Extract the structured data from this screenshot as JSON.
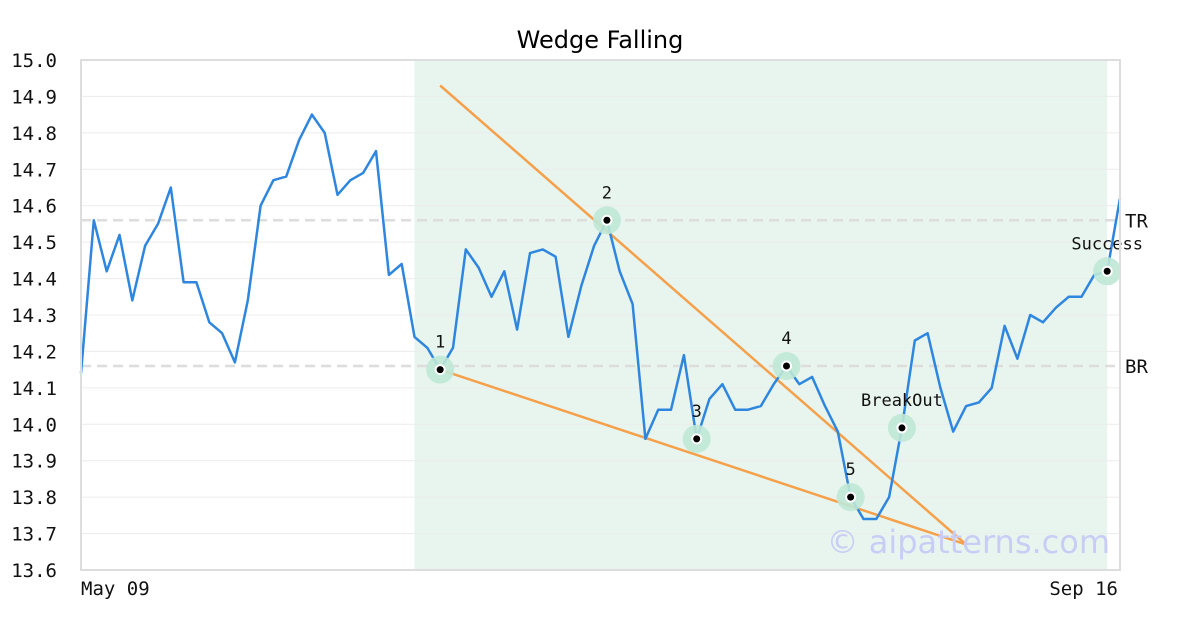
{
  "chart_data": {
    "type": "line",
    "title": "Wedge Falling",
    "xlabel": "",
    "ylabel": "",
    "ylim": [
      13.6,
      15.0
    ],
    "yticks": [
      "15.0",
      "14.9",
      "14.8",
      "14.7",
      "14.6",
      "14.5",
      "14.4",
      "14.3",
      "14.2",
      "14.1",
      "14.0",
      "13.9",
      "13.8",
      "13.7",
      "13.6"
    ],
    "x_tick_labels": [
      {
        "label": "May 09",
        "x": 0
      },
      {
        "label": "Sep 16",
        "x": 90
      }
    ],
    "grid": true,
    "colors": {
      "price": "#2e86de",
      "trendline": "#f5a04a",
      "pattern_zone": "#e8f5ef",
      "marker_halo": "#bfe8d6",
      "level_line": "#dddddd",
      "axis": "#dddddd"
    },
    "pattern_zone": {
      "x_start": 26,
      "x_end": 80
    },
    "series": [
      {
        "values": [
          14.14,
          14.56,
          14.42,
          14.52,
          14.34,
          14.49,
          14.55,
          14.65,
          14.39,
          14.39,
          14.28,
          14.25,
          14.17,
          14.34,
          14.6,
          14.67,
          14.68,
          14.78,
          14.85,
          14.8,
          14.63,
          14.67,
          14.69,
          14.75,
          14.41,
          14.44,
          14.24,
          14.21,
          14.15,
          14.21,
          14.48,
          14.43,
          14.35,
          14.42,
          14.26,
          14.47,
          14.48,
          14.46,
          14.24,
          14.38,
          14.49,
          14.56,
          14.42,
          14.33,
          13.96,
          14.04,
          14.04,
          14.19,
          13.96,
          14.07,
          14.11,
          14.04,
          14.04,
          14.05,
          14.11,
          14.16,
          14.11,
          14.13,
          14.05,
          13.98,
          13.8,
          13.74,
          13.74,
          13.8,
          13.99,
          14.23,
          14.25,
          14.1,
          13.98,
          14.05,
          14.06,
          14.1,
          14.27,
          14.18,
          14.3,
          14.28,
          14.32,
          14.35,
          14.35,
          14.41,
          14.42,
          14.62
        ]
      }
    ],
    "trendlines": [
      {
        "name": "upper",
        "x1": 28,
        "y1": 14.93,
        "x2": 69,
        "y2": 13.67
      },
      {
        "name": "lower",
        "x1": 28,
        "y1": 14.15,
        "x2": 69,
        "y2": 13.67
      }
    ],
    "levels": [
      {
        "label": "TR",
        "y": 14.56
      },
      {
        "label": "BR",
        "y": 14.16
      }
    ],
    "points": [
      {
        "label": "1",
        "x": 28,
        "y": 14.15,
        "label_pos": "above"
      },
      {
        "label": "2",
        "x": 41,
        "y": 14.56,
        "label_pos": "above"
      },
      {
        "label": "3",
        "x": 48,
        "y": 13.96,
        "label_pos": "above"
      },
      {
        "label": "4",
        "x": 55,
        "y": 14.16,
        "label_pos": "above"
      },
      {
        "label": "5",
        "x": 60,
        "y": 13.8,
        "label_pos": "above"
      },
      {
        "label": "BreakOut",
        "x": 64,
        "y": 13.99,
        "label_pos": "above"
      },
      {
        "label": "Success",
        "x": 80,
        "y": 14.42,
        "label_pos": "above"
      }
    ],
    "watermark": "© aipatterns.com"
  }
}
